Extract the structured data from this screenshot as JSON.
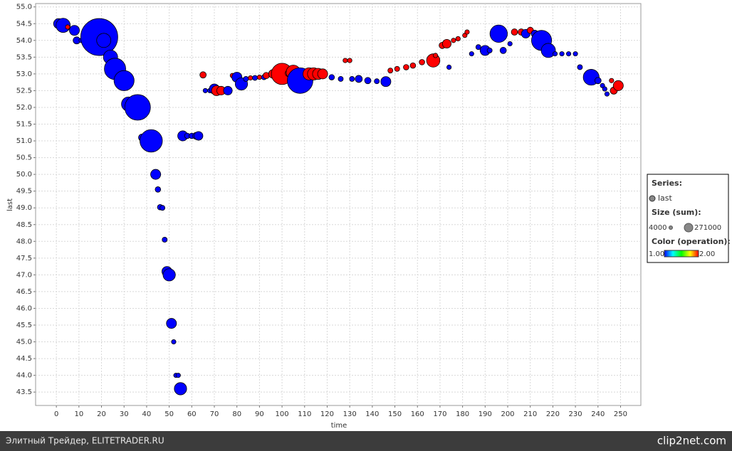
{
  "chart_data": {
    "type": "bubble",
    "x_label": "time",
    "y_label": "last",
    "xlim": [
      -9.2,
      259
    ],
    "ylim": [
      43.1,
      55.1
    ],
    "xticks": [
      0,
      10,
      20,
      30,
      40,
      50,
      60,
      70,
      80,
      90,
      100,
      110,
      120,
      130,
      140,
      150,
      160,
      170,
      180,
      190,
      200,
      210,
      220,
      230,
      240,
      250
    ],
    "yticks": [
      {
        "value": 43.5,
        "label": "43.5"
      },
      {
        "value": 44,
        "label": "44.0"
      },
      {
        "value": 44.5,
        "label": "44.5"
      },
      {
        "value": 45,
        "label": "45.0"
      },
      {
        "value": 45.5,
        "label": "45.5"
      },
      {
        "value": 46,
        "label": "46.0"
      },
      {
        "value": 46.5,
        "label": "46.5"
      },
      {
        "value": 47,
        "label": "47.0"
      },
      {
        "value": 47.5,
        "label": "47.5"
      },
      {
        "value": 48,
        "label": "48.0"
      },
      {
        "value": 48.5,
        "label": "48.5"
      },
      {
        "value": 49,
        "label": "49.0"
      },
      {
        "value": 49.5,
        "label": "49.5"
      },
      {
        "value": 50,
        "label": "50.0"
      },
      {
        "value": 50.5,
        "label": "50.5"
      },
      {
        "value": 51,
        "label": "51.0"
      },
      {
        "value": 51.5,
        "label": "51.5"
      },
      {
        "value": 52,
        "label": "52.0"
      },
      {
        "value": 52.5,
        "label": "52.5"
      },
      {
        "value": 53,
        "label": "53.0"
      },
      {
        "value": 53.5,
        "label": "53.5"
      },
      {
        "value": 54,
        "label": "54.0"
      },
      {
        "value": 54.5,
        "label": "54.5"
      },
      {
        "value": 55,
        "label": "55.0"
      }
    ],
    "grid": true,
    "x": [
      1,
      3,
      5,
      8,
      9,
      11,
      19,
      21,
      24,
      26,
      30,
      32,
      36,
      38,
      42,
      44,
      45,
      46,
      47,
      48,
      49,
      50,
      51,
      52,
      53,
      54,
      55,
      56,
      58,
      60,
      62,
      63,
      65,
      66,
      68,
      70,
      71,
      73,
      76,
      78,
      80,
      82,
      84,
      86,
      88,
      90,
      92,
      93,
      96,
      100,
      103,
      105,
      106,
      108,
      112,
      114,
      116,
      118,
      122,
      126,
      128,
      130,
      131,
      134,
      138,
      142,
      146,
      148,
      151,
      155,
      158,
      162,
      167,
      168,
      171,
      173,
      174,
      176,
      178,
      181,
      182,
      184,
      187,
      190,
      192,
      196,
      198,
      201,
      203,
      206,
      208,
      210,
      212,
      215,
      218,
      221,
      224,
      227,
      230,
      232,
      237,
      240,
      242,
      243,
      244,
      246,
      247,
      249
    ],
    "series": [
      {
        "name": "last",
        "values": [
          54.5,
          54.45,
          54.4,
          54.3,
          54.0,
          54.0,
          54.1,
          54.0,
          53.5,
          53.15,
          52.8,
          52.1,
          52.0,
          51.1,
          51.0,
          50.0,
          49.55,
          49.02,
          49.0,
          48.05,
          47.1,
          47.0,
          45.55,
          45.0,
          44.0,
          44.0,
          43.6,
          51.15,
          51.15,
          51.15,
          51.15,
          51.15,
          52.97,
          52.5,
          52.5,
          52.55,
          52.5,
          52.5,
          52.5,
          52.95,
          52.9,
          52.7,
          52.85,
          52.88,
          52.88,
          52.9,
          52.9,
          52.95,
          53.0,
          53.0,
          53.02,
          53.05,
          52.9,
          52.8,
          53.0,
          53.0,
          53.0,
          53.0,
          52.9,
          52.85,
          53.4,
          53.4,
          52.85,
          52.85,
          52.8,
          52.78,
          52.77,
          53.1,
          53.15,
          53.2,
          53.25,
          53.35,
          53.4,
          53.55,
          53.85,
          53.9,
          53.2,
          54.0,
          54.05,
          54.15,
          54.25,
          53.6,
          53.8,
          53.7,
          53.7,
          54.2,
          53.7,
          53.9,
          54.25,
          54.25,
          54.2,
          54.3,
          54.2,
          54.0,
          53.7,
          53.6,
          53.6,
          53.6,
          53.6,
          53.2,
          52.9,
          52.8,
          52.65,
          52.55,
          52.4,
          52.8,
          52.5,
          52.65
        ],
        "sizes": [
          20000,
          40000,
          4000,
          20000,
          10000,
          4000,
          271000,
          40000,
          40000,
          90000,
          80000,
          40000,
          130000,
          10000,
          100000,
          20000,
          6000,
          6000,
          5000,
          5000,
          20000,
          30000,
          20000,
          4000,
          4000,
          4000,
          30000,
          20000,
          6000,
          6000,
          10000,
          15000,
          8000,
          4000,
          4000,
          20000,
          20000,
          15000,
          15000,
          4000,
          20000,
          30000,
          5000,
          4000,
          5000,
          4000,
          5000,
          8000,
          15000,
          90000,
          10000,
          40000,
          10000,
          130000,
          30000,
          30000,
          25000,
          20000,
          6000,
          5000,
          4000,
          4000,
          5000,
          10000,
          8000,
          5000,
          20000,
          5000,
          5000,
          6000,
          6000,
          6000,
          35000,
          4000,
          8000,
          15000,
          4000,
          4000,
          4000,
          4000,
          4000,
          4000,
          5000,
          20000,
          5000,
          60000,
          8000,
          4000,
          8000,
          8000,
          15000,
          8000,
          10000,
          80000,
          40000,
          4000,
          4000,
          4000,
          4000,
          5000,
          50000,
          8000,
          4000,
          4000,
          4000,
          4000,
          10000,
          20000
        ],
        "operation": [
          1,
          1,
          2,
          1,
          1,
          1,
          1,
          1,
          1,
          1,
          1,
          1,
          1,
          1,
          1,
          1,
          1,
          1,
          1,
          1,
          1,
          1,
          1,
          1,
          1,
          1,
          1,
          1,
          1,
          1,
          1,
          1,
          2,
          1,
          1,
          1,
          2,
          2,
          1,
          2,
          1,
          1,
          1,
          2,
          1,
          2,
          1,
          2,
          2,
          2,
          2,
          2,
          2,
          1,
          2,
          2,
          2,
          2,
          1,
          1,
          2,
          2,
          1,
          1,
          1,
          1,
          1,
          2,
          2,
          2,
          2,
          2,
          2,
          2,
          2,
          2,
          1,
          2,
          2,
          2,
          2,
          1,
          1,
          1,
          1,
          1,
          1,
          1,
          2,
          2,
          1,
          2,
          1,
          1,
          1,
          1,
          1,
          1,
          1,
          1,
          1,
          1,
          1,
          1,
          1,
          2,
          2,
          2
        ]
      }
    ],
    "legend": {
      "series_title": "Series:",
      "size_title": "Size (sum):",
      "size_values": [
        4000,
        271000
      ],
      "color_title": "Color (operation):",
      "color_ticks": [
        {
          "value": 1,
          "label": "1.00"
        },
        {
          "value": 2,
          "label": "2.00"
        }
      ],
      "colormap": [
        "#0000ff",
        "#00ffff",
        "#00ff00",
        "#ffff00",
        "#ff0000"
      ],
      "marker_color": "#888888"
    },
    "footer": {
      "left": "Элитный Трейдер, ELITETRADER.RU",
      "right": "clip2net.com"
    }
  }
}
